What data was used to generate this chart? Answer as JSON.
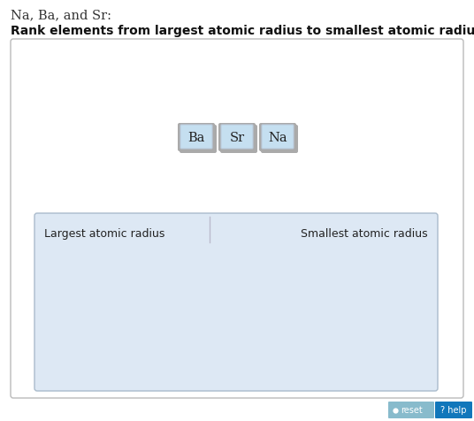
{
  "title_line1": "Na, Ba, and Sr:",
  "title_line2": "Rank elements from largest atomic radius to smallest atomic radius.",
  "elements": [
    "Ba",
    "Sr",
    "Na"
  ],
  "element_button_color": "#c5dff0",
  "element_button_edge": "#999999",
  "element_text_color": "#222222",
  "outer_box_bg": "#ffffff",
  "outer_box_edge": "#bbbbbb",
  "drop_zone_bg": "#dde8f4",
  "drop_zone_edge": "#aabbcc",
  "label_left": "Largest atomic radius",
  "label_right": "Smallest atomic radius",
  "divider_color": "#bbbbcc",
  "reset_bg": "#88bbcc",
  "reset_text": "reset",
  "help_bg": "#1177bb",
  "help_text": "? help",
  "bg_color": "#ffffff",
  "title1_color": "#333333",
  "title2_color": "#111111"
}
